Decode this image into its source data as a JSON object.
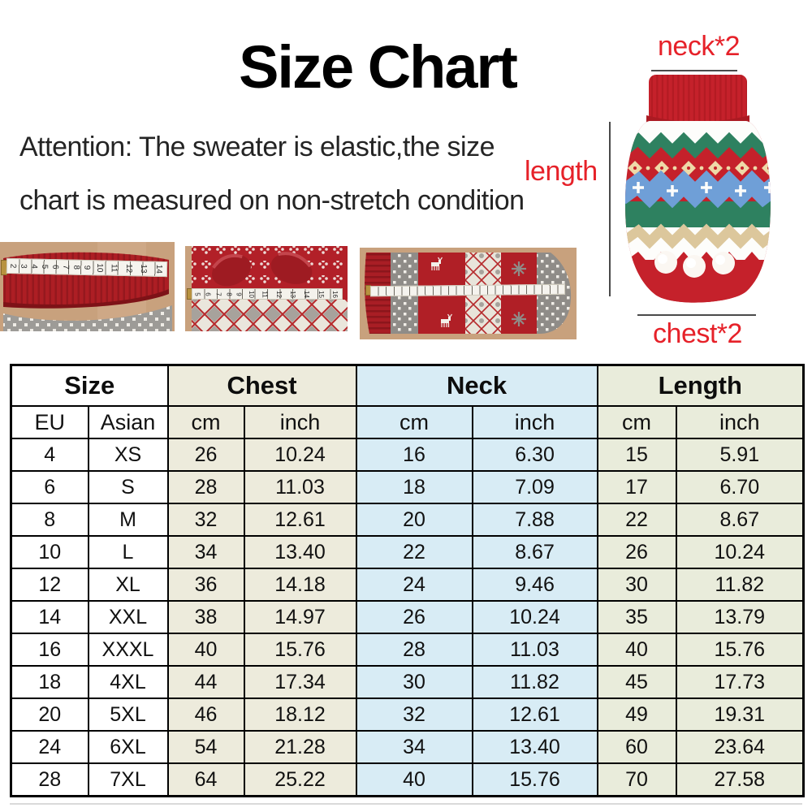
{
  "header": {
    "title": "Size Chart",
    "attention": [
      "Attention: The sweater is elastic,the size",
      "chart is measured on non-stretch condition"
    ]
  },
  "diagram": {
    "neck_label": "neck*2",
    "length_label": "length",
    "chest_label": "chest*2",
    "label_color": "#e62129"
  },
  "photos": [
    {
      "name": "red-collar-with-measuring-tape",
      "tape_numbers": [
        "2",
        "3",
        "4",
        "5",
        "6",
        "7",
        "8",
        "9",
        "10",
        "11",
        "12",
        "13",
        "14"
      ]
    },
    {
      "name": "sweater-cuffs-with-measuring-tape",
      "tape_numbers": [
        "5",
        "6",
        "7",
        "8",
        "9",
        "10",
        "11",
        "12",
        "13",
        "14",
        "15",
        "16"
      ]
    },
    {
      "name": "flat-sweater-with-measuring-tape",
      "tape_numbers": []
    }
  ],
  "table": {
    "groups": [
      {
        "label": "Size",
        "bg": "#ffffff"
      },
      {
        "label": "Chest",
        "bg": "#edebdc"
      },
      {
        "label": "Neck",
        "bg": "#d8ecf5"
      },
      {
        "label": "Length",
        "bg": "#e9ecdb"
      }
    ],
    "subheaders": [
      "EU",
      "Asian",
      "cm",
      "inch",
      "cm",
      "inch",
      "cm",
      "inch"
    ],
    "rows": [
      [
        "4",
        "XS",
        "26",
        "10.24",
        "16",
        "6.30",
        "15",
        "5.91"
      ],
      [
        "6",
        "S",
        "28",
        "11.03",
        "18",
        "7.09",
        "17",
        "6.70"
      ],
      [
        "8",
        "M",
        "32",
        "12.61",
        "20",
        "7.88",
        "22",
        "8.67"
      ],
      [
        "10",
        "L",
        "34",
        "13.40",
        "22",
        "8.67",
        "26",
        "10.24"
      ],
      [
        "12",
        "XL",
        "36",
        "14.18",
        "24",
        "9.46",
        "30",
        "11.82"
      ],
      [
        "14",
        "XXL",
        "38",
        "14.97",
        "26",
        "10.24",
        "35",
        "13.79"
      ],
      [
        "16",
        "XXXL",
        "40",
        "15.76",
        "28",
        "11.03",
        "40",
        "15.76"
      ],
      [
        "18",
        "4XL",
        "44",
        "17.34",
        "30",
        "11.82",
        "45",
        "17.73"
      ],
      [
        "20",
        "5XL",
        "46",
        "18.12",
        "32",
        "12.61",
        "49",
        "19.31"
      ],
      [
        "24",
        "6XL",
        "54",
        "21.28",
        "34",
        "13.40",
        "60",
        "23.64"
      ],
      [
        "28",
        "7XL",
        "64",
        "25.22",
        "40",
        "15.76",
        "70",
        "27.58"
      ]
    ]
  }
}
